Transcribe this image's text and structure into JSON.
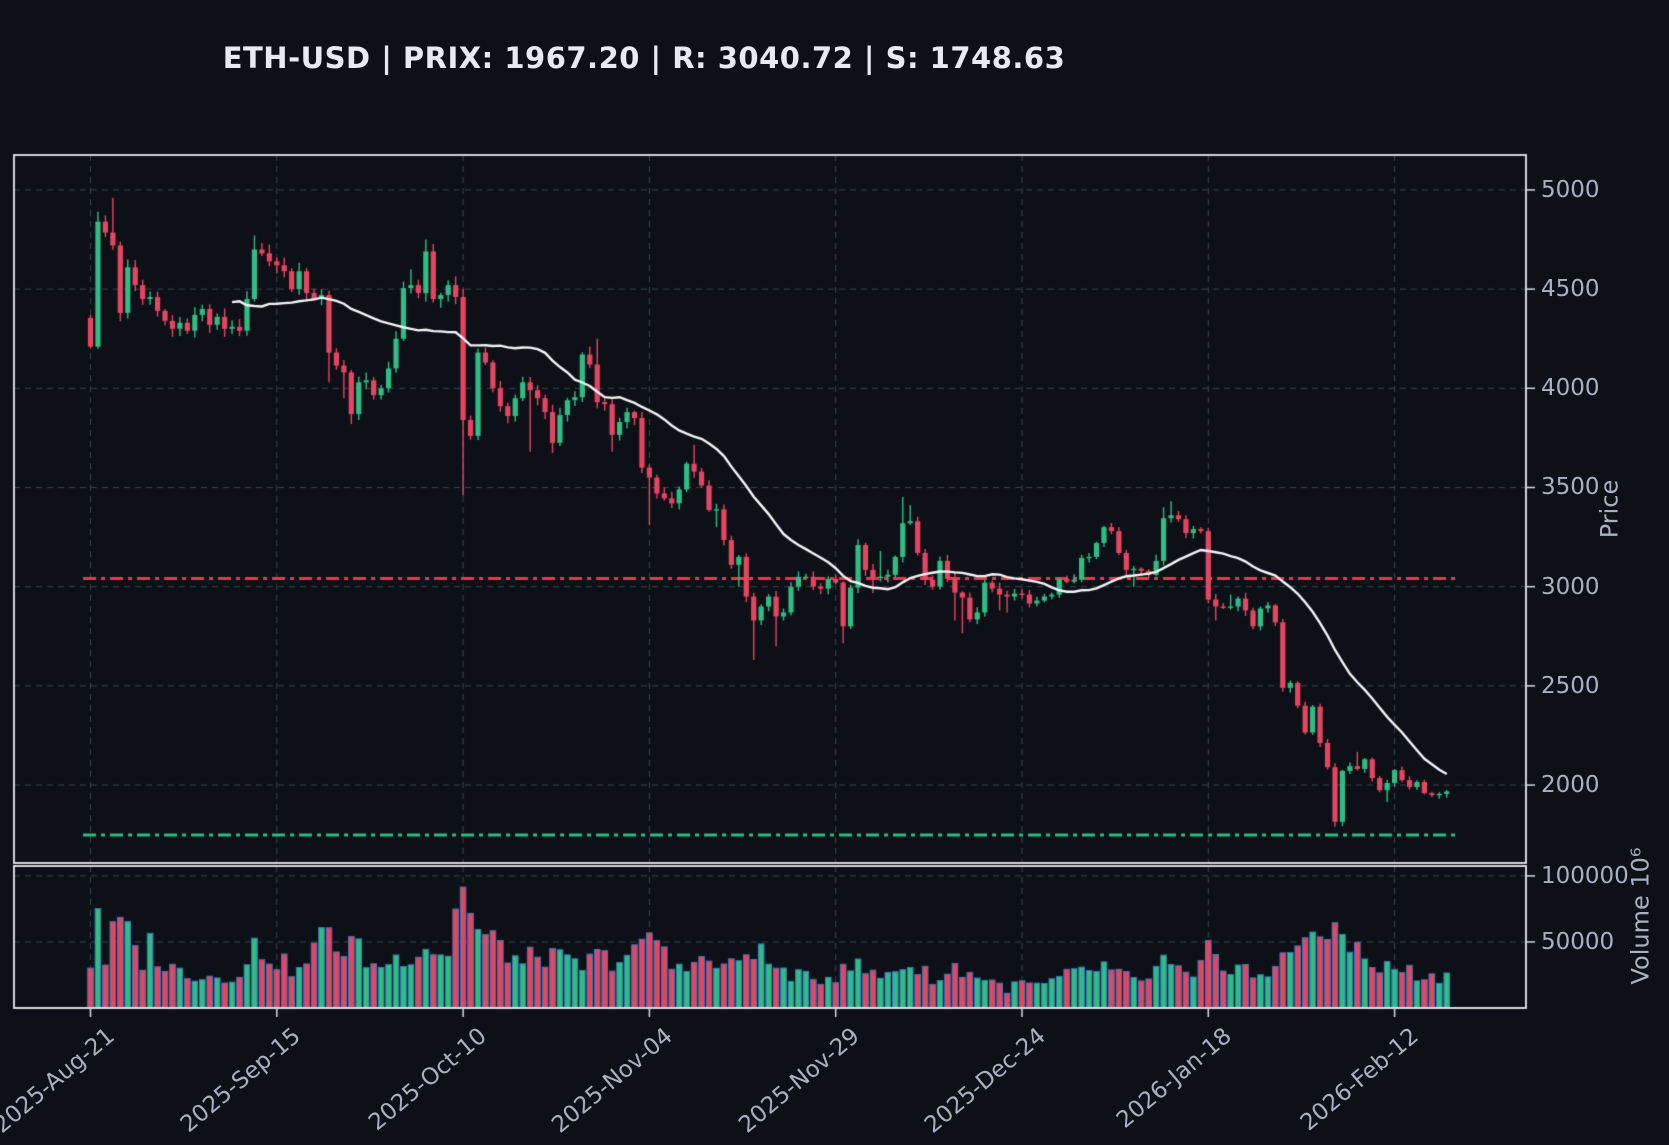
{
  "title": "ETH-USD | PRIX: 1967.20 | R: 3040.72 | S: 1748.63",
  "chart_data": {
    "type": "candlestick",
    "symbol": "ETH-USD",
    "current_price": 1967.2,
    "levels": {
      "resistance": 3040.72,
      "support": 1748.63
    },
    "start_date": "2025-08-21",
    "x_ticks": [
      {
        "label": "2025-Aug-21",
        "day": 0
      },
      {
        "label": "2025-Sep-15",
        "day": 25
      },
      {
        "label": "2025-Oct-10",
        "day": 50
      },
      {
        "label": "2025-Nov-04",
        "day": 75
      },
      {
        "label": "2025-Nov-29",
        "day": 100
      },
      {
        "label": "2025-Dec-24",
        "day": 125
      },
      {
        "label": "2026-Jan-18",
        "day": 150
      },
      {
        "label": "2026-Feb-12",
        "day": 175
      }
    ],
    "price_axis": {
      "label": "Price",
      "ticks": [
        5000,
        4500,
        4000,
        3500,
        3000,
        2500,
        2000
      ],
      "range": [
        1607,
        5176
      ]
    },
    "volume_axis": {
      "label": "Volume  10⁶",
      "ticks": [
        100000,
        50000
      ],
      "range": [
        0,
        107500
      ]
    },
    "moving_average": {
      "window": 20
    },
    "candles": {
      "first_open": 4355,
      "closes": [
        4210,
        4840,
        4785,
        4720,
        4380,
        4610,
        4520,
        4450,
        4460,
        4390,
        4340,
        4300,
        4330,
        4290,
        4370,
        4400,
        4320,
        4360,
        4300,
        4310,
        4290,
        4450,
        4700,
        4680,
        4640,
        4620,
        4590,
        4500,
        4590,
        4480,
        4450,
        4470,
        4180,
        4115,
        4080,
        3870,
        4030,
        4040,
        3965,
        4000,
        4100,
        4250,
        4505,
        4520,
        4480,
        4690,
        4450,
        4470,
        4520,
        4460,
        3840,
        3760,
        4180,
        4130,
        4000,
        3910,
        3860,
        3950,
        4030,
        3990,
        3950,
        3880,
        3725,
        3865,
        3940,
        3955,
        4170,
        4120,
        3930,
        3920,
        3765,
        3830,
        3880,
        3850,
        3600,
        3550,
        3470,
        3445,
        3420,
        3490,
        3620,
        3580,
        3510,
        3386,
        3390,
        3235,
        3110,
        3150,
        2950,
        2830,
        2900,
        2950,
        2850,
        2870,
        3000,
        3050,
        3050,
        3000,
        2990,
        3040,
        3020,
        2800,
        2995,
        3210,
        3085,
        3045,
        3050,
        3060,
        3150,
        3320,
        3330,
        3170,
        3035,
        3000,
        3130,
        3040,
        2970,
        2945,
        2835,
        2870,
        3020,
        2990,
        2960,
        2950,
        2965,
        2960,
        2915,
        2930,
        2950,
        2960,
        3040,
        3025,
        3035,
        3145,
        3150,
        3220,
        3300,
        3280,
        3170,
        3085,
        3090,
        3080,
        3060,
        3130,
        3345,
        3360,
        3340,
        3270,
        3290,
        3280,
        2935,
        2900,
        2898,
        2900,
        2940,
        2880,
        2800,
        2890,
        2905,
        2820,
        2490,
        2515,
        2400,
        2265,
        2395,
        2212,
        2090,
        1815,
        2071,
        2095,
        2081,
        2130,
        2035,
        1974,
        2010,
        2075,
        2025,
        1990,
        2015,
        1959,
        1949,
        1955,
        1967.2
      ],
      "special_highs": {
        "1": 4890,
        "3": 4960,
        "22": 4770,
        "43": 4600,
        "45": 4750,
        "68": 4250,
        "81": 3715,
        "106": 3180,
        "109": 3452,
        "110": 3410,
        "134": 3170,
        "144": 3400,
        "145": 3430,
        "153": 2960,
        "170": 2167
      },
      "special_lows": {
        "32": 4030,
        "34": 3950,
        "35": 3820,
        "50": 3460,
        "59": 3680,
        "62": 3674,
        "70": 3680,
        "74": 3573,
        "75": 3310,
        "84": 3300,
        "87": 3000,
        "89": 2630,
        "92": 2700,
        "101": 2715,
        "105": 2968,
        "116": 2830,
        "117": 2765,
        "122": 2880,
        "123": 2870,
        "140": 3000,
        "151": 2830,
        "167": 1790,
        "168": 1793,
        "174": 1914
      }
    },
    "volume_anchors": [
      [
        0,
        33000
      ],
      [
        1,
        76000
      ],
      [
        2,
        35000
      ],
      [
        3,
        53000
      ],
      [
        4,
        63000
      ],
      [
        5,
        53000
      ],
      [
        6,
        42000
      ],
      [
        7,
        34000
      ],
      [
        8,
        47000
      ],
      [
        10,
        30000
      ],
      [
        14,
        25000
      ],
      [
        18,
        22000
      ],
      [
        21,
        30000
      ],
      [
        22,
        45000
      ],
      [
        25,
        35000
      ],
      [
        28,
        26000
      ],
      [
        32,
        59000
      ],
      [
        34,
        40000
      ],
      [
        35,
        48000
      ],
      [
        38,
        30000
      ],
      [
        41,
        36000
      ],
      [
        45,
        45000
      ],
      [
        48,
        40000
      ],
      [
        50,
        98000
      ],
      [
        51,
        69000
      ],
      [
        52,
        55000
      ],
      [
        55,
        45000
      ],
      [
        58,
        32000
      ],
      [
        60,
        40000
      ],
      [
        63,
        35000
      ],
      [
        66,
        30000
      ],
      [
        68,
        38000
      ],
      [
        70,
        35000
      ],
      [
        74,
        42000
      ],
      [
        75,
        58000
      ],
      [
        78,
        30000
      ],
      [
        80,
        35000
      ],
      [
        84,
        32000
      ],
      [
        86,
        30000
      ],
      [
        89,
        45000
      ],
      [
        92,
        28000
      ],
      [
        94,
        25000
      ],
      [
        97,
        20000
      ],
      [
        100,
        24000
      ],
      [
        101,
        35000
      ],
      [
        103,
        30000
      ],
      [
        106,
        22000
      ],
      [
        109,
        32000
      ],
      [
        111,
        28000
      ],
      [
        114,
        20000
      ],
      [
        116,
        30000
      ],
      [
        118,
        25000
      ],
      [
        120,
        22000
      ],
      [
        123,
        14000
      ],
      [
        125,
        18000
      ],
      [
        128,
        16000
      ],
      [
        130,
        22000
      ],
      [
        133,
        26000
      ],
      [
        136,
        30000
      ],
      [
        139,
        22000
      ],
      [
        141,
        18000
      ],
      [
        144,
        34000
      ],
      [
        146,
        26000
      ],
      [
        148,
        20000
      ],
      [
        150,
        40000
      ],
      [
        152,
        30000
      ],
      [
        154,
        34000
      ],
      [
        156,
        24000
      ],
      [
        158,
        20000
      ],
      [
        160,
        43000
      ],
      [
        161,
        48000
      ],
      [
        163,
        50000
      ],
      [
        164,
        45000
      ],
      [
        166,
        55000
      ],
      [
        167,
        59000
      ],
      [
        168,
        64000
      ],
      [
        169,
        48000
      ],
      [
        171,
        35000
      ],
      [
        173,
        28000
      ],
      [
        175,
        30000
      ],
      [
        176,
        28000
      ],
      [
        178,
        25000
      ],
      [
        180,
        22000
      ],
      [
        182,
        24000
      ]
    ],
    "colors": {
      "background": "#0d1117",
      "up": "#2ebd85",
      "down": "#e64561",
      "volume_edge": "#3d78b4",
      "resistance": "#e63950",
      "support": "#2abd84",
      "grid": "#3a4150",
      "border": "#e9ebef",
      "ma": "#f3f4f6",
      "text": "#a9b0bf",
      "title_text": "#e7eaf1"
    }
  }
}
